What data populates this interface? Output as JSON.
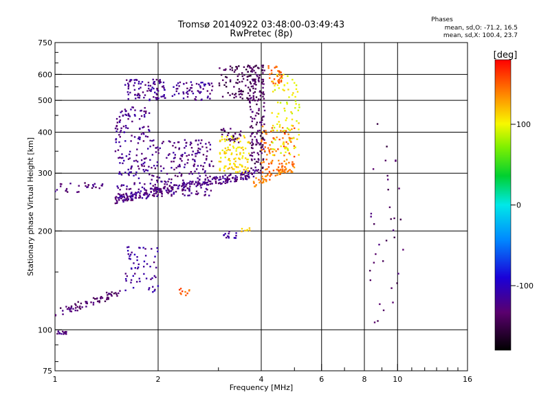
{
  "chart_data": {
    "type": "scatter",
    "title": "Tromsø 20140922 03:48:00-03:49:43",
    "subtitle": "RwPretec (8p)",
    "xlabel": "Frequency [MHz]",
    "ylabel": "Stationary phase Virtual Height [km]",
    "xscale": "log",
    "yscale": "log",
    "xlim": [
      1,
      16
    ],
    "ylim": [
      75,
      750
    ],
    "xticks": [
      1,
      2,
      4,
      6,
      8,
      10,
      16
    ],
    "yticks": [
      75,
      100,
      200,
      300,
      400,
      500,
      600,
      750
    ],
    "vgrid": [
      2,
      4,
      6,
      8,
      10
    ],
    "hgrid": [
      100,
      200,
      300,
      400,
      500,
      600
    ],
    "legend_position": "top-right",
    "phases_note": {
      "title": "Phases",
      "line_o": "mean, sd,O: -71.2, 16.5",
      "line_x": "mean, sd,X: 100.4, 23.7"
    },
    "colorbar": {
      "label": "[deg]",
      "min": -180,
      "max": 180,
      "ticks": [
        100,
        0,
        -100
      ],
      "colormap": "rainbow: black-purple-blue-cyan-green-yellow-orange-red"
    },
    "clusters": [
      {
        "x": [
          1.0,
          1.55
        ],
        "y": [
          112,
          130
        ],
        "phase": -135,
        "n": 70,
        "band": "diagonal"
      },
      {
        "x": [
          1.0,
          1.08
        ],
        "y": [
          97,
          99
        ],
        "phase": -130,
        "n": 14
      },
      {
        "x": [
          1.0,
          1.38
        ],
        "y": [
          262,
          282
        ],
        "phase": -130,
        "n": 28
      },
      {
        "x": [
          1.5,
          3.9
        ],
        "y": [
          250,
          300
        ],
        "phase": -125,
        "n": 260,
        "band": "diagonal"
      },
      {
        "x": [
          1.5,
          1.9
        ],
        "y": [
          250,
          480
        ],
        "phase": -120,
        "n": 180
      },
      {
        "x": [
          1.9,
          2.9
        ],
        "y": [
          255,
          380
        ],
        "phase": -125,
        "n": 200
      },
      {
        "x": [
          1.6,
          2.1
        ],
        "y": [
          500,
          580
        ],
        "phase": -120,
        "n": 90
      },
      {
        "x": [
          2.2,
          2.9
        ],
        "y": [
          500,
          570
        ],
        "phase": -120,
        "n": 60
      },
      {
        "x": [
          3.0,
          4.1
        ],
        "y": [
          500,
          640
        ],
        "phase": -145,
        "n": 110
      },
      {
        "x": [
          3.7,
          4.1
        ],
        "y": [
          300,
          640
        ],
        "phase": -140,
        "n": 140
      },
      {
        "x": [
          3.0,
          3.5
        ],
        "y": [
          370,
          410
        ],
        "phase": -140,
        "n": 30
      },
      {
        "x": [
          3.0,
          3.7
        ],
        "y": [
          300,
          390
        ],
        "phase": 110,
        "n": 100
      },
      {
        "x": [
          3.8,
          5.0
        ],
        "y": [
          280,
          320
        ],
        "phase": 140,
        "n": 60,
        "band": "diagonal"
      },
      {
        "x": [
          4.0,
          5.0
        ],
        "y": [
          300,
          420
        ],
        "phase": 145,
        "n": 90
      },
      {
        "x": [
          4.3,
          5.2
        ],
        "y": [
          340,
          620
        ],
        "phase": 100,
        "n": 90
      },
      {
        "x": [
          4.2,
          4.6
        ],
        "y": [
          560,
          640
        ],
        "phase": 150,
        "n": 30
      },
      {
        "x": [
          3.1,
          3.4
        ],
        "y": [
          190,
          200
        ],
        "phase": -115,
        "n": 14
      },
      {
        "x": [
          3.5,
          3.8
        ],
        "y": [
          195,
          205
        ],
        "phase": 110,
        "n": 7
      },
      {
        "x": [
          1.6,
          2.0
        ],
        "y": [
          130,
          180
        ],
        "phase": -115,
        "n": 60
      },
      {
        "x": [
          2.3,
          2.5
        ],
        "y": [
          127,
          134
        ],
        "phase": 150,
        "n": 10
      },
      {
        "x": [
          8.3,
          10.5
        ],
        "y": [
          100,
          450
        ],
        "phase": -140,
        "n": 35
      }
    ]
  }
}
